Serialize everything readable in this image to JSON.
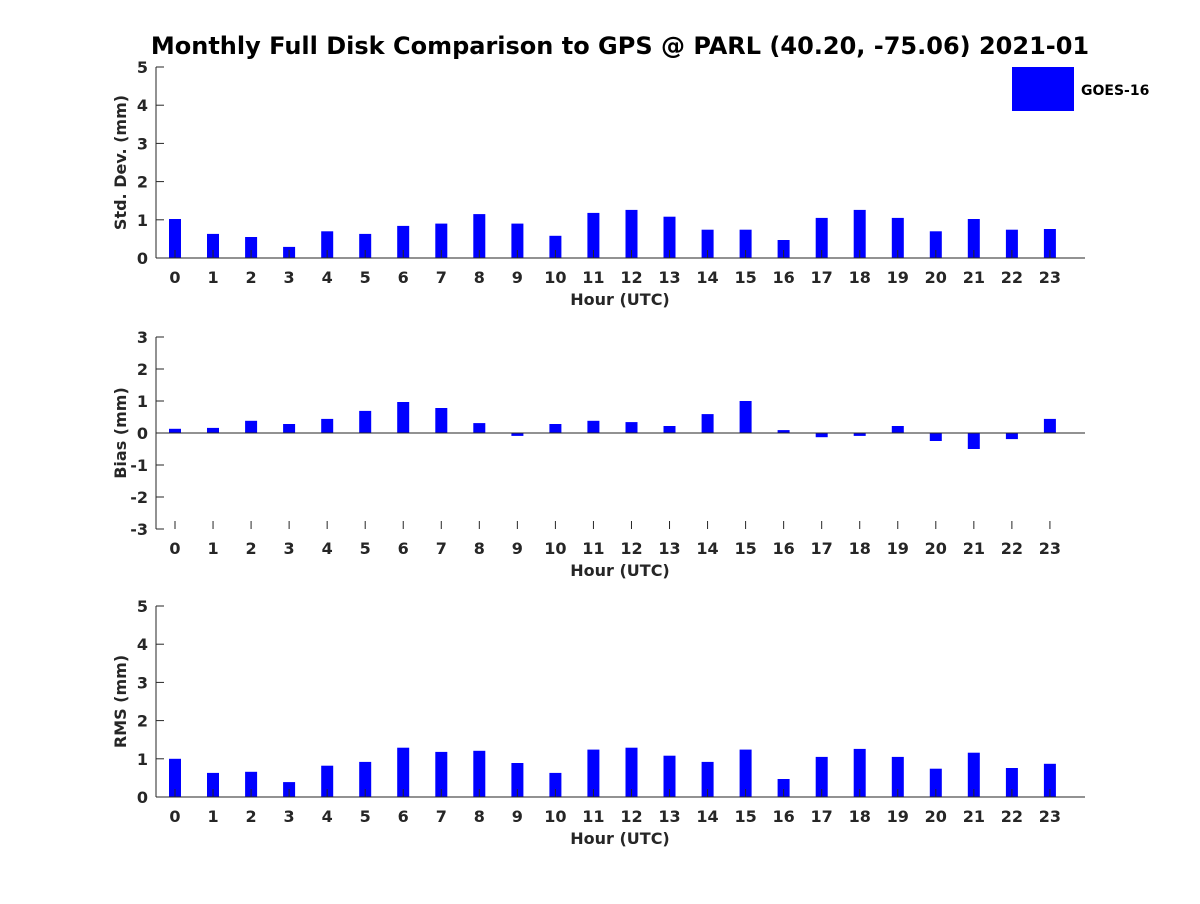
{
  "title": "Monthly Full Disk Comparison to GPS @ PARL (40.20, -75.06) 2021-01",
  "legend": {
    "label": "GOES-16",
    "color": "#0000ff",
    "placement": "top-right"
  },
  "chart_data": [
    {
      "type": "bar",
      "ylabel": "Std. Dev. (mm)",
      "xlabel": "Hour (UTC)",
      "categories": [
        "0",
        "1",
        "2",
        "3",
        "4",
        "5",
        "6",
        "7",
        "8",
        "9",
        "10",
        "11",
        "12",
        "13",
        "14",
        "15",
        "16",
        "17",
        "18",
        "19",
        "20",
        "21",
        "22",
        "23"
      ],
      "yticks": [
        "0",
        "1",
        "2",
        "3",
        "4",
        "5"
      ],
      "ylim": [
        0,
        5
      ],
      "grid": false,
      "series": [
        {
          "name": "GOES-16",
          "color": "#0000ff",
          "values": [
            1.02,
            0.63,
            0.55,
            0.29,
            0.7,
            0.63,
            0.84,
            0.9,
            1.15,
            0.9,
            0.58,
            1.18,
            1.26,
            1.08,
            0.74,
            0.74,
            0.47,
            1.05,
            1.26,
            1.05,
            0.7,
            1.02,
            0.74,
            0.76
          ]
        }
      ]
    },
    {
      "type": "bar",
      "ylabel": "Bias (mm)",
      "xlabel": "Hour (UTC)",
      "categories": [
        "0",
        "1",
        "2",
        "3",
        "4",
        "5",
        "6",
        "7",
        "8",
        "9",
        "10",
        "11",
        "12",
        "13",
        "14",
        "15",
        "16",
        "17",
        "18",
        "19",
        "20",
        "21",
        "22",
        "23"
      ],
      "yticks": [
        "-3",
        "-2",
        "-1",
        "0",
        "1",
        "2",
        "3"
      ],
      "ylim": [
        -3,
        3
      ],
      "grid": false,
      "series": [
        {
          "name": "GOES-16",
          "color": "#0000ff",
          "values": [
            0.13,
            0.16,
            0.38,
            0.28,
            0.44,
            0.69,
            0.97,
            0.78,
            0.31,
            -0.09,
            0.28,
            0.38,
            0.34,
            0.22,
            0.59,
            1.0,
            0.09,
            -0.13,
            -0.09,
            0.22,
            -0.25,
            -0.5,
            -0.19,
            0.44
          ]
        }
      ]
    },
    {
      "type": "bar",
      "ylabel": "RMS (mm)",
      "xlabel": "Hour (UTC)",
      "categories": [
        "0",
        "1",
        "2",
        "3",
        "4",
        "5",
        "6",
        "7",
        "8",
        "9",
        "10",
        "11",
        "12",
        "13",
        "14",
        "15",
        "16",
        "17",
        "18",
        "19",
        "20",
        "21",
        "22",
        "23"
      ],
      "yticks": [
        "0",
        "1",
        "2",
        "3",
        "4",
        "5"
      ],
      "ylim": [
        0,
        5
      ],
      "grid": false,
      "series": [
        {
          "name": "GOES-16",
          "color": "#0000ff",
          "values": [
            1.0,
            0.63,
            0.66,
            0.39,
            0.82,
            0.92,
            1.29,
            1.18,
            1.21,
            0.89,
            0.63,
            1.24,
            1.29,
            1.08,
            0.92,
            1.24,
            0.47,
            1.05,
            1.26,
            1.05,
            0.74,
            1.16,
            0.76,
            0.87
          ]
        }
      ]
    }
  ]
}
